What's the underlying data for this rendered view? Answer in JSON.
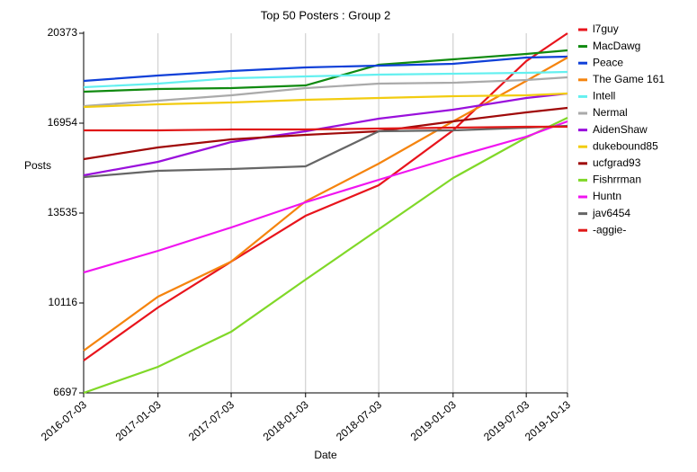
{
  "chart_data": {
    "type": "line",
    "title": "Top 50 Posters : Group 2",
    "x_label": "Date",
    "y_label": "Posts",
    "x": [
      "2016-07-03",
      "2017-01-03",
      "2017-07-03",
      "2018-01-03",
      "2018-07-03",
      "2019-01-03",
      "2019-07-03",
      "2019-10-13"
    ],
    "xlim": [
      "2016-07-03",
      "2019-10-13"
    ],
    "xticks": [
      "2016-07-03",
      "2017-01-03",
      "2017-07-03",
      "2018-01-03",
      "2018-07-03",
      "2019-01-03",
      "2019-07-03",
      "2019-10-13"
    ],
    "ylim": [
      6697,
      20373
    ],
    "yticks": [
      6697,
      10116,
      13535,
      16954,
      20373
    ],
    "grid": true,
    "legend": "outside right",
    "series": [
      {
        "name": "l7guy",
        "color": "#e8141c",
        "values": [
          7928,
          9945,
          11689,
          13432,
          14595,
          16680,
          19313,
          20373
        ]
      },
      {
        "name": "MacDawg",
        "color": "#108a10",
        "values": [
          18151,
          18253,
          18287,
          18390,
          19176,
          19381,
          19586,
          19723
        ]
      },
      {
        "name": "Peace",
        "color": "#1040d8",
        "values": [
          18561,
          18766,
          18937,
          19074,
          19142,
          19211,
          19450,
          19484
        ]
      },
      {
        "name": "The Game 161",
        "color": "#f5840e",
        "values": [
          8304,
          10355,
          11689,
          13979,
          15415,
          17022,
          18561,
          19450
        ]
      },
      {
        "name": "Intell",
        "color": "#64f0f0",
        "values": [
          18321,
          18458,
          18663,
          18732,
          18800,
          18834,
          18869,
          18903
        ]
      },
      {
        "name": "Nermal",
        "color": "#aaaaaa",
        "values": [
          17604,
          17809,
          18014,
          18287,
          18458,
          18492,
          18595,
          18698
        ]
      },
      {
        "name": "AidenShaw",
        "color": "#9a10dc",
        "values": [
          14971,
          15484,
          16236,
          16646,
          17125,
          17467,
          17911,
          18082
        ]
      },
      {
        "name": "dukebound85",
        "color": "#f2cc10",
        "values": [
          17570,
          17672,
          17741,
          17843,
          17911,
          17980,
          18014,
          18082
        ]
      },
      {
        "name": "ucfgrad93",
        "color": "#a00a0a",
        "values": [
          15586,
          16031,
          16338,
          16509,
          16646,
          17022,
          17364,
          17535
        ]
      },
      {
        "name": "Fishrrman",
        "color": "#80d828",
        "values": [
          6697,
          7689,
          9022,
          11005,
          12920,
          14868,
          16407,
          17159
        ]
      },
      {
        "name": "Huntn",
        "color": "#f014f0",
        "values": [
          11278,
          12099,
          12988,
          13945,
          14800,
          15655,
          16441,
          17022
        ]
      },
      {
        "name": "jav6454",
        "color": "#666666",
        "values": [
          14903,
          15142,
          15211,
          15313,
          16646,
          16680,
          16783,
          16851
        ]
      },
      {
        "name": "-aggie-",
        "color": "#e01818",
        "values": [
          16680,
          16680,
          16714,
          16714,
          16749,
          16783,
          16817,
          16817
        ]
      }
    ]
  }
}
